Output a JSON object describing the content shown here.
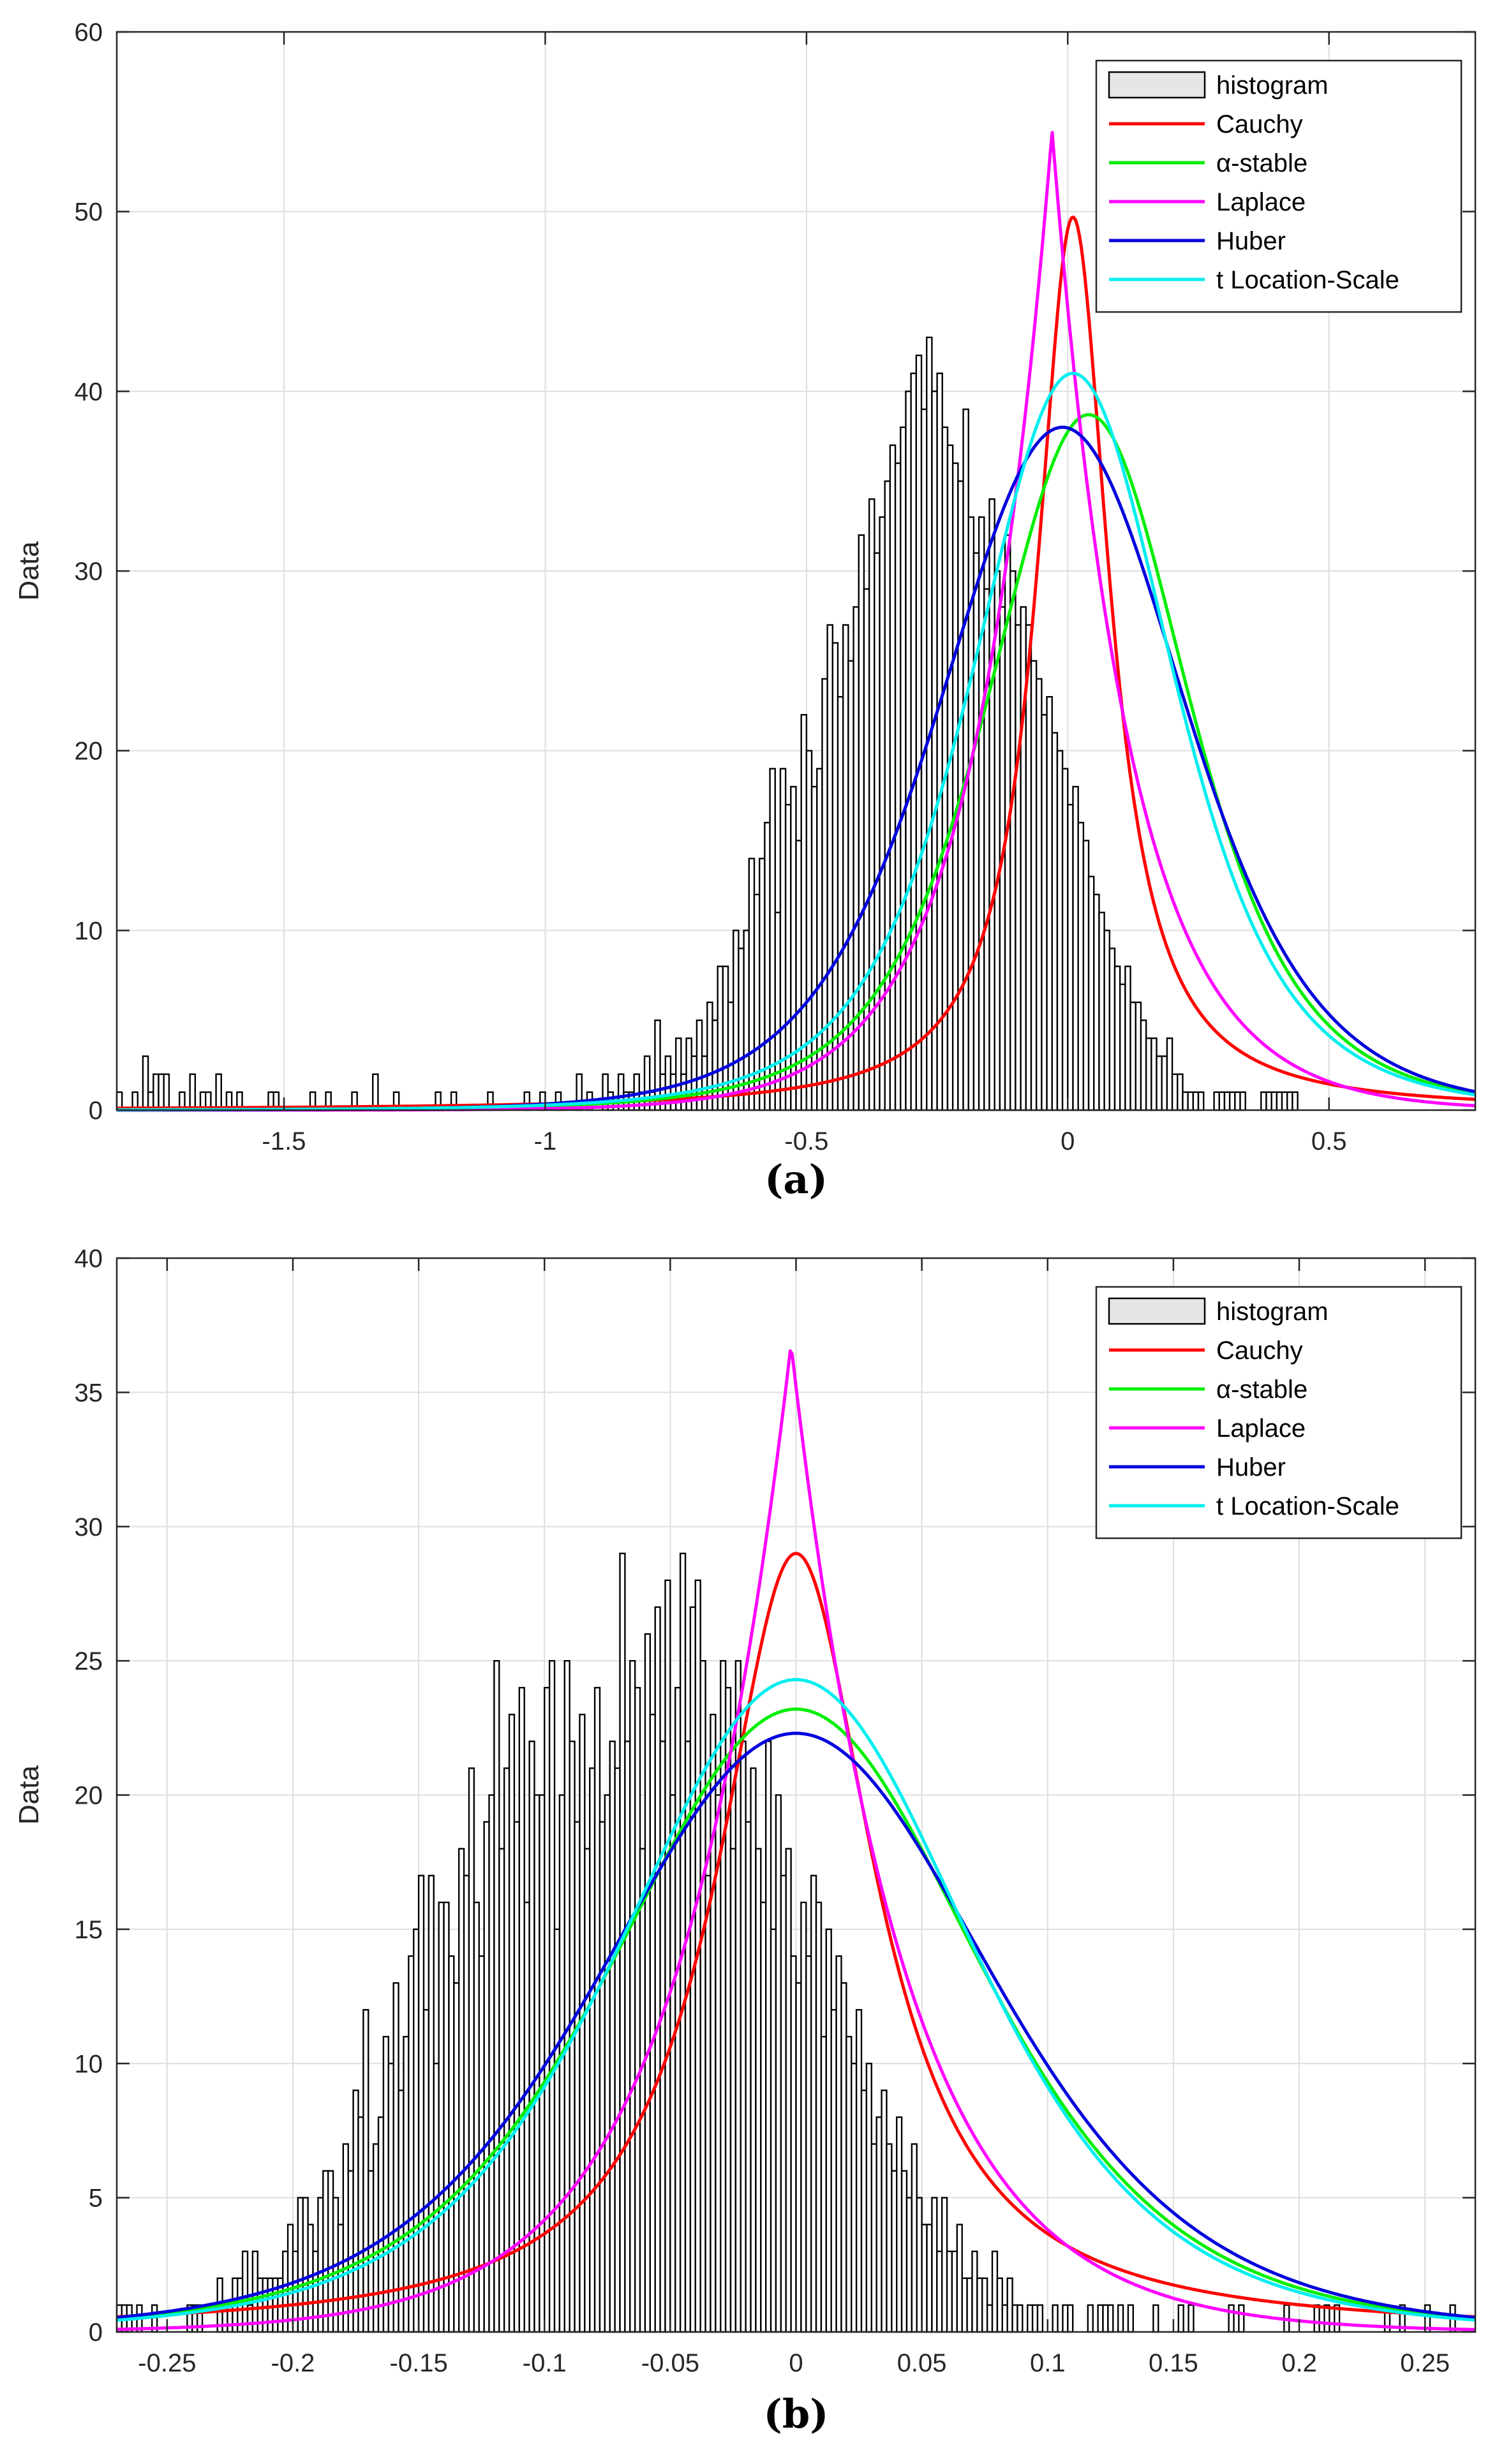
{
  "chart_data": [
    {
      "type": "bar",
      "panel_label": "(a)",
      "panel_letter": "a",
      "ylabel": "Data",
      "xlabel": "",
      "xlim": [
        -1.82,
        0.78
      ],
      "ylim": [
        0,
        60
      ],
      "xticks": [
        -1.5,
        -1,
        -0.5,
        0,
        0.5
      ],
      "xtick_labels": [
        "-1.5",
        "-1",
        "-0.5",
        "0",
        "0.5"
      ],
      "yticks": [
        0,
        10,
        20,
        30,
        40,
        50,
        60
      ],
      "ytick_labels": [
        "0",
        "10",
        "20",
        "30",
        "40",
        "50",
        "60"
      ],
      "grid": true,
      "legend_position": "top-right",
      "histogram": {
        "name": "histogram",
        "bin_start": -1.82,
        "bin_width": 0.01,
        "counts": [
          1,
          0,
          0,
          1,
          0,
          3,
          1,
          2,
          2,
          2,
          0,
          0,
          1,
          0,
          2,
          0,
          1,
          1,
          0,
          2,
          0,
          1,
          0,
          1,
          0,
          0,
          0,
          0,
          0,
          1,
          1,
          0,
          0,
          0,
          0,
          0,
          0,
          1,
          0,
          0,
          1,
          0,
          0,
          0,
          0,
          1,
          0,
          0,
          0,
          2,
          0,
          0,
          0,
          1,
          0,
          0,
          0,
          0,
          0,
          0,
          0,
          1,
          0,
          0,
          1,
          0,
          0,
          0,
          0,
          0,
          0,
          1,
          0,
          0,
          0,
          0,
          0,
          0,
          1,
          0,
          0,
          1,
          0,
          0,
          1,
          0,
          0,
          0,
          2,
          0,
          1,
          0,
          0,
          2,
          1,
          0,
          2,
          1,
          1,
          2,
          1,
          3,
          1,
          5,
          2,
          3,
          2,
          4,
          2,
          4,
          3,
          5,
          3,
          6,
          5,
          8,
          8,
          6,
          10,
          9,
          10,
          14,
          12,
          14,
          16,
          19,
          11,
          19,
          17,
          18,
          15,
          22,
          20,
          18,
          19,
          24,
          27,
          26,
          23,
          27,
          25,
          28,
          32,
          29,
          34,
          31,
          33,
          35,
          37,
          36,
          38,
          40,
          41,
          42,
          39,
          43,
          40,
          41,
          38,
          37,
          36,
          35,
          39,
          33,
          31,
          33,
          29,
          34,
          30,
          28,
          32,
          30,
          27,
          28,
          27,
          25,
          24,
          22,
          23,
          21,
          20,
          19,
          17,
          18,
          16,
          15,
          13,
          12,
          11,
          10,
          9,
          8,
          7,
          8,
          6,
          6,
          5,
          4,
          4,
          3,
          3,
          4,
          2,
          2,
          1,
          1,
          1,
          1,
          0,
          0,
          1,
          1,
          1,
          1,
          1,
          1,
          0,
          0,
          0,
          1,
          1,
          1,
          1,
          1,
          1,
          1,
          0,
          0
        ]
      },
      "legend": [
        "histogram",
        "Cauchy",
        "α-stable",
        "Laplace",
        "Huber",
        "t Location-Scale"
      ],
      "series": [
        {
          "name": "Cauchy",
          "color": "#ff0000",
          "model": "cauchy",
          "peak": 49.7,
          "center": 0.01,
          "scale": 0.085
        },
        {
          "name": "α-stable",
          "color": "#00ee00",
          "model": "student",
          "peak": 38.7,
          "center": 0.04,
          "scale": 0.2,
          "dof": 4
        },
        {
          "name": "Laplace",
          "color": "#ff00ff",
          "model": "laplace",
          "peak": 54.5,
          "center": -0.03,
          "scale": 0.15
        },
        {
          "name": "Huber",
          "color": "#0000dd",
          "model": "student",
          "peak": 38.0,
          "center": -0.01,
          "scale": 0.24,
          "dof": 6
        },
        {
          "name": "t Location-Scale",
          "color": "#00eeee",
          "model": "student",
          "peak": 41.0,
          "center": 0.01,
          "scale": 0.2,
          "dof": 4
        }
      ]
    },
    {
      "type": "bar",
      "panel_label": "(b)",
      "panel_letter": "b",
      "ylabel": "Data",
      "xlabel": "",
      "xlim": [
        -0.27,
        0.27
      ],
      "ylim": [
        0,
        40
      ],
      "xticks": [
        -0.25,
        -0.2,
        -0.15,
        -0.1,
        -0.05,
        0,
        0.05,
        0.1,
        0.15,
        0.2,
        0.25
      ],
      "xtick_labels": [
        "-0.25",
        "-0.2",
        "-0.15",
        "-0.1",
        "-0.05",
        "0",
        "0.05",
        "0.1",
        "0.15",
        "0.2",
        "0.25"
      ],
      "yticks": [
        0,
        5,
        10,
        15,
        20,
        25,
        30,
        35,
        40
      ],
      "ytick_labels": [
        "0",
        "5",
        "10",
        "15",
        "20",
        "25",
        "30",
        "35",
        "40"
      ],
      "grid": true,
      "legend_position": "top-right",
      "histogram": {
        "name": "histogram",
        "bin_start": -0.27,
        "bin_width": 0.002,
        "counts": [
          1,
          1,
          1,
          0,
          1,
          0,
          0,
          1,
          0,
          0,
          0,
          0,
          0,
          0,
          1,
          1,
          1,
          0,
          0,
          0,
          2,
          1,
          1,
          2,
          2,
          3,
          1,
          3,
          2,
          2,
          2,
          2,
          2,
          3,
          4,
          3,
          5,
          5,
          4,
          3,
          5,
          6,
          6,
          5,
          4,
          7,
          6,
          9,
          8,
          12,
          6,
          7,
          8,
          11,
          10,
          13,
          9,
          11,
          14,
          15,
          17,
          12,
          17,
          10,
          16,
          16,
          14,
          13,
          18,
          17,
          21,
          16,
          14,
          19,
          20,
          25,
          18,
          21,
          23,
          19,
          24,
          16,
          22,
          20,
          20,
          24,
          25,
          15,
          20,
          25,
          22,
          19,
          23,
          18,
          21,
          24,
          19,
          20,
          22,
          21,
          29,
          22,
          25,
          24,
          18,
          26,
          23,
          27,
          22,
          28,
          20,
          24,
          29,
          22,
          27,
          28,
          25,
          17,
          23,
          20,
          25,
          24,
          18,
          25,
          22,
          19,
          21,
          18,
          16,
          22,
          15,
          20,
          17,
          18,
          14,
          13,
          16,
          14,
          17,
          16,
          11,
          15,
          12,
          14,
          13,
          11,
          10,
          12,
          9,
          10,
          7,
          8,
          9,
          7,
          6,
          8,
          6,
          5,
          7,
          5,
          4,
          4,
          5,
          3,
          5,
          3,
          3,
          4,
          2,
          2,
          3,
          2,
          2,
          1,
          3,
          2,
          1,
          2,
          1,
          1,
          0,
          1,
          1,
          1,
          0,
          0,
          1,
          0,
          1,
          1,
          0,
          0,
          0,
          1,
          0,
          1,
          1,
          1,
          0,
          1,
          0,
          1,
          0,
          0,
          0,
          0,
          1,
          0,
          0,
          0,
          0,
          1,
          0,
          1,
          0,
          0,
          0,
          0,
          0,
          0,
          0,
          1,
          0,
          1,
          0,
          0,
          0,
          0,
          0,
          0,
          0,
          0,
          1,
          0,
          0,
          0,
          0,
          0,
          1,
          0,
          1,
          0,
          1,
          0,
          0,
          0,
          0,
          0,
          0,
          0,
          0,
          0,
          1,
          0,
          0,
          1,
          0,
          0,
          0,
          0,
          1,
          0,
          0,
          0,
          0,
          1,
          0,
          0,
          0,
          0,
          0
        ]
      },
      "legend": [
        "histogram",
        "Cauchy",
        "α-stable",
        "Laplace",
        "Huber",
        "t Location-Scale"
      ],
      "series": [
        {
          "name": "Cauchy",
          "color": "#ff0000",
          "model": "cauchy",
          "peak": 29.0,
          "center": 0.0,
          "scale": 0.038
        },
        {
          "name": "α-stable",
          "color": "#00ee00",
          "model": "student",
          "peak": 23.2,
          "center": 0.0,
          "scale": 0.075,
          "dof": 5
        },
        {
          "name": "Laplace",
          "color": "#ff00ff",
          "model": "laplace",
          "peak": 36.8,
          "center": -0.002,
          "scale": 0.045
        },
        {
          "name": "Huber",
          "color": "#0000dd",
          "model": "student",
          "peak": 22.3,
          "center": 0.0,
          "scale": 0.08,
          "dof": 6
        },
        {
          "name": "t Location-Scale",
          "color": "#00eeee",
          "model": "student",
          "peak": 24.3,
          "center": 0.0,
          "scale": 0.072,
          "dof": 5
        }
      ]
    }
  ]
}
